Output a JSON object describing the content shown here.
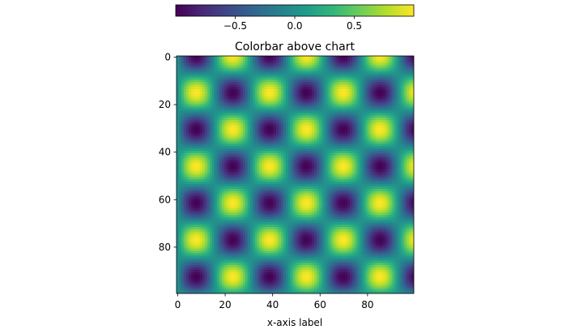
{
  "chart_data": {
    "type": "heatmap",
    "title": "Colorbar above chart",
    "xlabel": "x-axis label",
    "ylabel": "",
    "grid": false,
    "shape": [
      100,
      100
    ],
    "formula": "z = sin(2*pi*col/31) * cos(2*pi*(row-15)/31)",
    "xlim": [
      -0.5,
      99.5
    ],
    "ylim": [
      99.5,
      -0.5
    ],
    "x_ticks": [
      0,
      20,
      40,
      60,
      80
    ],
    "x_tick_labels": [
      "0",
      "20",
      "40",
      "60",
      "80"
    ],
    "y_ticks": [
      0,
      20,
      40,
      60,
      80
    ],
    "y_tick_labels": [
      "0",
      "20",
      "40",
      "60",
      "80"
    ],
    "colormap": "viridis",
    "colormap_stops": [
      "#440154",
      "#482878",
      "#3e4989",
      "#31688e",
      "#26828e",
      "#1f9e89",
      "#35b779",
      "#6ece58",
      "#b5de2b",
      "#fde725"
    ],
    "colorbar": {
      "placement": "top",
      "range": [
        -1,
        1
      ],
      "ticks": [
        -0.5,
        0.0,
        0.5
      ],
      "tick_labels": [
        "−0.5",
        "0.0",
        "0.5"
      ]
    }
  }
}
